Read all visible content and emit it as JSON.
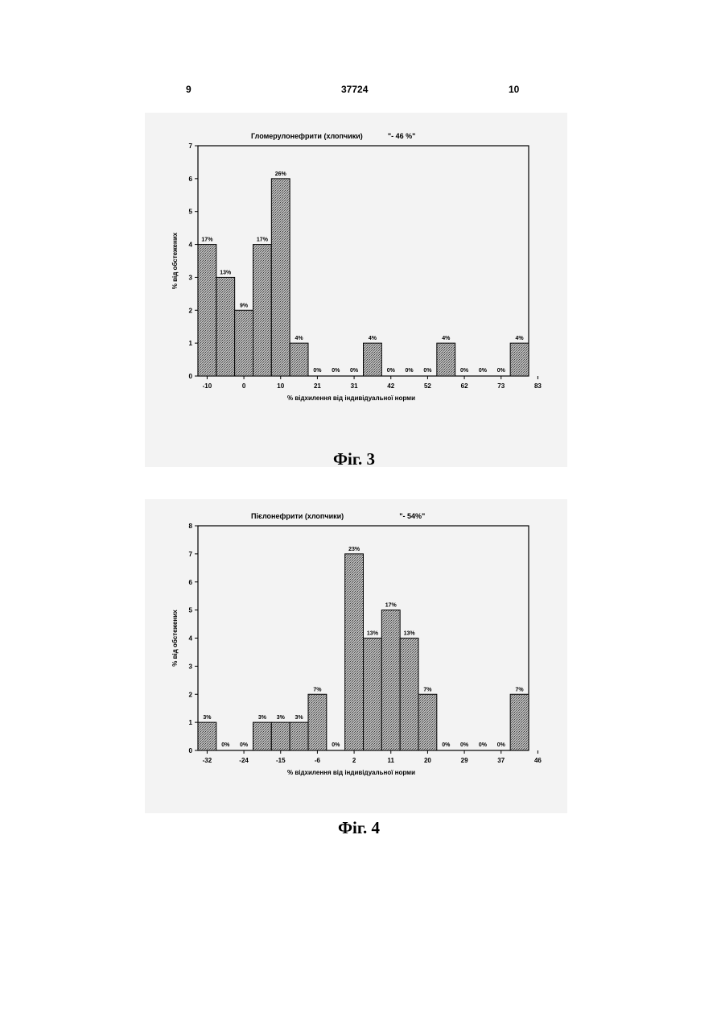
{
  "header": {
    "page_left": "9",
    "patent_number": "37724",
    "page_right": "10"
  },
  "figures": [
    {
      "caption": "Фіг. 3"
    },
    {
      "caption": "Фіг. 4"
    }
  ],
  "chart_data": [
    {
      "type": "bar",
      "title": "Гломерулонефрити (хлопчики)",
      "title_note": "\"- 46 %\"",
      "xlabel": "%  відхилення від індивідуальної норми",
      "ylabel": "% від обстежених",
      "ylim": [
        0,
        7
      ],
      "yticks": [
        "0",
        "1",
        "2",
        "3",
        "4",
        "5",
        "6",
        "7"
      ],
      "xticks": [
        "-10",
        "0",
        "10",
        "21",
        "31",
        "42",
        "52",
        "62",
        "73",
        "83"
      ],
      "values": [
        4,
        3,
        2,
        4,
        6,
        1,
        0,
        0,
        0,
        1,
        0,
        0,
        0,
        1,
        0,
        0,
        0,
        1
      ],
      "labels": [
        "17%",
        "13%",
        "9%",
        "17%",
        "26%",
        "4%",
        "0%",
        "0%",
        "0%",
        "4%",
        "0%",
        "0%",
        "0%",
        "4%",
        "0%",
        "0%",
        "0%",
        "4%"
      ],
      "grid": false,
      "legend": "none"
    },
    {
      "type": "bar",
      "title": "Пієлонефрити (хлопчики)",
      "title_note": "\"- 54%\"",
      "xlabel": "%  відхилення від індивідуальної норми",
      "ylabel": "% від обстежених",
      "ylim": [
        0,
        8
      ],
      "yticks": [
        "0",
        "1",
        "2",
        "3",
        "4",
        "5",
        "6",
        "7",
        "8"
      ],
      "xticks": [
        "-32",
        "-24",
        "-15",
        "-6",
        "2",
        "11",
        "20",
        "29",
        "37",
        "46"
      ],
      "values": [
        1,
        0,
        0,
        1,
        1,
        1,
        2,
        0,
        7,
        4,
        5,
        4,
        2,
        0,
        0,
        0,
        0,
        2
      ],
      "labels": [
        "3%",
        "0%",
        "0%",
        "3%",
        "3%",
        "3%",
        "7%",
        "0%",
        "23%",
        "13%",
        "17%",
        "13%",
        "7%",
        "0%",
        "0%",
        "0%",
        "0%",
        "7%"
      ],
      "grid": false,
      "legend": "none"
    }
  ]
}
